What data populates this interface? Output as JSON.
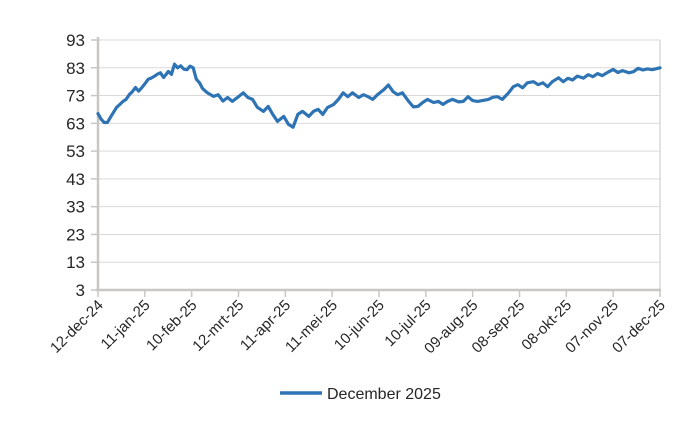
{
  "chart_data": {
    "type": "line",
    "title": "",
    "xlabel": "",
    "ylabel": "",
    "ylim": [
      3,
      93
    ],
    "y_ticks": [
      3,
      13,
      23,
      33,
      43,
      53,
      63,
      73,
      83,
      93
    ],
    "x_tick_labels": [
      "12-dec-24",
      "11-jan-25",
      "10-feb-25",
      "12-mrt-25",
      "11-apr-25",
      "11-mei-25",
      "10-jun-25",
      "10-jul-25",
      "09-aug-25",
      "08-sep-25",
      "08-okt-25",
      "07-nov-25",
      "07-dec-25"
    ],
    "x_range_days": [
      0,
      360
    ],
    "grid": "horizontal-only",
    "legend_position": "bottom-center",
    "series": [
      {
        "name": "December 2025",
        "color": "#2E74B5",
        "points": [
          [
            0,
            66.5
          ],
          [
            2,
            64.5
          ],
          [
            4,
            63.3
          ],
          [
            6,
            63.3
          ],
          [
            8,
            65.2
          ],
          [
            10,
            67.0
          ],
          [
            12,
            68.8
          ],
          [
            14,
            69.8
          ],
          [
            16,
            70.9
          ],
          [
            18,
            71.6
          ],
          [
            20,
            73.3
          ],
          [
            22,
            74.4
          ],
          [
            24,
            75.9
          ],
          [
            26,
            74.6
          ],
          [
            28,
            75.8
          ],
          [
            30,
            77.2
          ],
          [
            32,
            78.8
          ],
          [
            34,
            79.3
          ],
          [
            36,
            79.9
          ],
          [
            38,
            80.7
          ],
          [
            40,
            81.2
          ],
          [
            42,
            79.5
          ],
          [
            44,
            80.9
          ],
          [
            45,
            81.7
          ],
          [
            47,
            80.6
          ],
          [
            49,
            84.3
          ],
          [
            51,
            83.0
          ],
          [
            53,
            83.7
          ],
          [
            55,
            82.5
          ],
          [
            57,
            82.3
          ],
          [
            59,
            83.6
          ],
          [
            61,
            83.0
          ],
          [
            63,
            78.9
          ],
          [
            65,
            77.6
          ],
          [
            67,
            75.5
          ],
          [
            70,
            74.0
          ],
          [
            74,
            72.7
          ],
          [
            77,
            73.3
          ],
          [
            80,
            71.0
          ],
          [
            83,
            72.3
          ],
          [
            86,
            70.9
          ],
          [
            90,
            72.6
          ],
          [
            93,
            74.0
          ],
          [
            96,
            72.3
          ],
          [
            99,
            71.6
          ],
          [
            102,
            68.8
          ],
          [
            106,
            67.3
          ],
          [
            109,
            69.1
          ],
          [
            112,
            66.2
          ],
          [
            115,
            63.7
          ],
          [
            119,
            65.5
          ],
          [
            122,
            62.6
          ],
          [
            125,
            61.6
          ],
          [
            128,
            66.2
          ],
          [
            131,
            67.3
          ],
          [
            135,
            65.5
          ],
          [
            138,
            67.3
          ],
          [
            141,
            68.0
          ],
          [
            144,
            66.2
          ],
          [
            147,
            68.7
          ],
          [
            151,
            69.8
          ],
          [
            154,
            71.6
          ],
          [
            157,
            74.0
          ],
          [
            160,
            72.6
          ],
          [
            163,
            74.0
          ],
          [
            167,
            72.3
          ],
          [
            170,
            73.3
          ],
          [
            173,
            72.6
          ],
          [
            176,
            71.6
          ],
          [
            179,
            73.3
          ],
          [
            183,
            75.1
          ],
          [
            186,
            76.8
          ],
          [
            189,
            74.4
          ],
          [
            192,
            73.3
          ],
          [
            195,
            74.0
          ],
          [
            199,
            70.9
          ],
          [
            202,
            68.9
          ],
          [
            205,
            69.1
          ],
          [
            208,
            70.5
          ],
          [
            211,
            71.6
          ],
          [
            215,
            70.5
          ],
          [
            218,
            70.9
          ],
          [
            221,
            69.8
          ],
          [
            224,
            70.9
          ],
          [
            227,
            71.6
          ],
          [
            231,
            70.7
          ],
          [
            234,
            70.9
          ],
          [
            237,
            72.6
          ],
          [
            240,
            71.2
          ],
          [
            243,
            70.9
          ],
          [
            247,
            71.3
          ],
          [
            250,
            71.6
          ],
          [
            253,
            72.4
          ],
          [
            256,
            72.6
          ],
          [
            259,
            71.6
          ],
          [
            263,
            74.0
          ],
          [
            266,
            76.2
          ],
          [
            269,
            76.9
          ],
          [
            272,
            75.8
          ],
          [
            275,
            77.6
          ],
          [
            279,
            78.0
          ],
          [
            282,
            76.9
          ],
          [
            285,
            77.6
          ],
          [
            288,
            76.2
          ],
          [
            291,
            78.0
          ],
          [
            295,
            79.4
          ],
          [
            298,
            78.0
          ],
          [
            301,
            79.2
          ],
          [
            304,
            78.6
          ],
          [
            307,
            80.0
          ],
          [
            311,
            79.3
          ],
          [
            314,
            80.5
          ],
          [
            317,
            79.8
          ],
          [
            320,
            80.9
          ],
          [
            323,
            80.2
          ],
          [
            327,
            81.5
          ],
          [
            330,
            82.4
          ],
          [
            333,
            81.3
          ],
          [
            336,
            82.0
          ],
          [
            340,
            81.2
          ],
          [
            343,
            81.6
          ],
          [
            346,
            82.8
          ],
          [
            349,
            82.2
          ],
          [
            352,
            82.6
          ],
          [
            355,
            82.3
          ],
          [
            360,
            83.0
          ]
        ]
      }
    ]
  },
  "colors": {
    "line": "#2E74B5",
    "gridline": "#D9D9D9",
    "axis": "#C9C7C5",
    "tick": "#C9C7C5",
    "text": "#262626",
    "background": "#FFFFFF"
  },
  "legend": {
    "label": "December 2025"
  }
}
